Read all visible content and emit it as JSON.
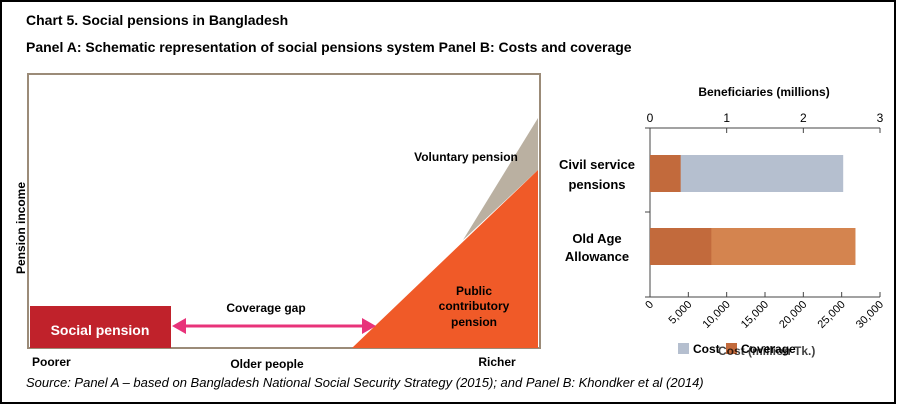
{
  "chart_title": "Chart 5. Social pensions in Bangladesh",
  "panels_title": "Panel A: Schematic representation of social pensions system  Panel B: Costs and coverage",
  "source": "Source: Panel A – based on Bangladesh National Social Security Strategy (2015); and Panel B: Khondker et al (2014)",
  "panel_a": {
    "y_label": "Pension income",
    "x_label_left": "Poorer",
    "x_label_mid": "Older people",
    "x_label_right": "Richer",
    "social_pension": "Social pension",
    "coverage_gap": "Coverage gap",
    "voluntary": "Voluntary pension",
    "public_line1": "Public",
    "public_line2": "contributory",
    "public_line3": "pension",
    "colors": {
      "social": "#c0222b",
      "public": "#f05a28",
      "voluntary": "#bab0a1",
      "arrow": "#e8337a",
      "frame": "#9b8b78"
    }
  },
  "chart_data": {
    "type": "bar",
    "orientation": "horizontal",
    "categories": [
      [
        "Civil service",
        "pensions"
      ],
      [
        "Old Age",
        "Allowance"
      ]
    ],
    "top_axis": {
      "title": "Beneficiaries (millions)",
      "min": 0,
      "max": 3,
      "ticks": [
        "0",
        "1",
        "2",
        "3"
      ]
    },
    "bottom_axis": {
      "min": 0,
      "max": 30000,
      "ticks": [
        "0",
        "5,000",
        "10,000",
        "15,000",
        "20,000",
        "25,000",
        "30,000"
      ]
    },
    "series": [
      {
        "name": "Cost",
        "axis": "bottom",
        "color": "#b5bfcf",
        "values": [
          25200,
          26800
        ]
      },
      {
        "name": "Coverage",
        "axis": "top",
        "color": "#c26a3c",
        "values": [
          0.4,
          0.8
        ]
      }
    ],
    "legend_overlap_text": "Cost (million Tk.)",
    "legend_position": "bottom",
    "colors": {
      "old_age_cost": "#d4844f"
    }
  }
}
